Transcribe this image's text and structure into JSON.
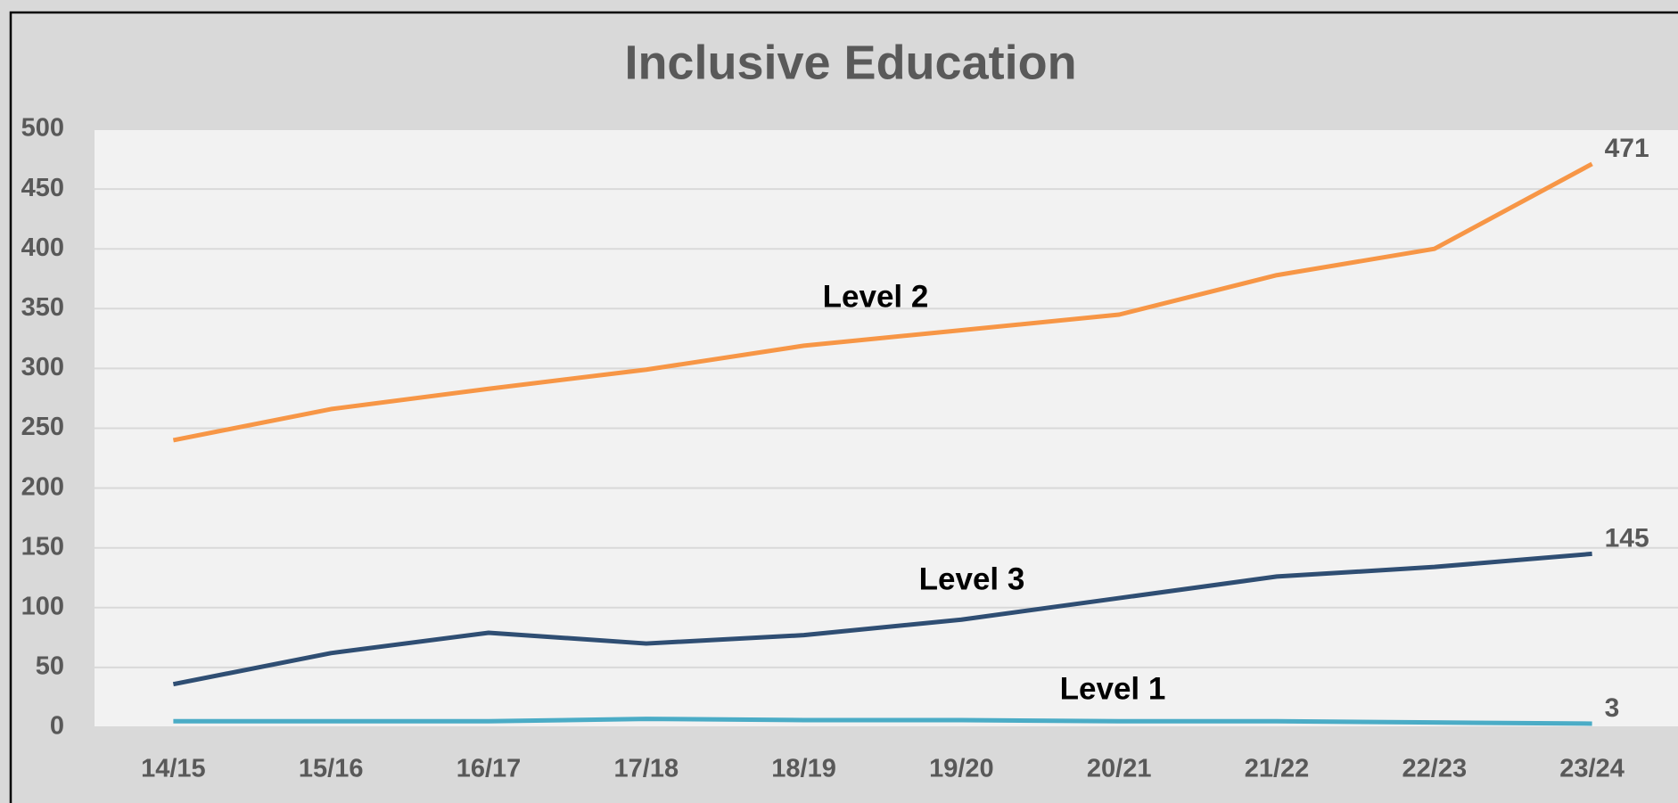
{
  "chart_data": {
    "type": "line",
    "title": "Inclusive Education",
    "categories": [
      "14/15",
      "15/16",
      "16/17",
      "17/18",
      "18/19",
      "19/20",
      "20/21",
      "21/22",
      "22/23",
      "23/24"
    ],
    "series": [
      {
        "name": "Level 2",
        "color": "#f79646",
        "values": [
          240,
          266,
          283,
          299,
          319,
          332,
          345,
          378,
          400,
          471
        ]
      },
      {
        "name": "Level 3",
        "color": "#2f4e73",
        "values": [
          36,
          62,
          79,
          70,
          77,
          90,
          108,
          126,
          134,
          145
        ]
      },
      {
        "name": "Level 1",
        "color": "#4bacc6",
        "values": [
          5,
          5,
          5,
          7,
          6,
          6,
          5,
          5,
          4,
          3
        ]
      }
    ],
    "ylim": [
      0,
      500
    ],
    "yticks": [
      0,
      50,
      100,
      150,
      200,
      250,
      300,
      350,
      400,
      450,
      500
    ],
    "grid": true
  }
}
